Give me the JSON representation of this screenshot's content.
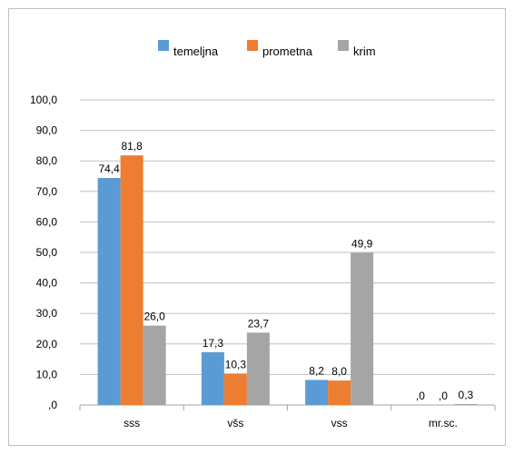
{
  "chart_data": {
    "type": "bar",
    "categories": [
      "sss",
      "všs",
      "vss",
      "mr.sc."
    ],
    "series": [
      {
        "name": "temeljna",
        "values": [
          74.4,
          17.3,
          8.2,
          0.0
        ],
        "labels": [
          "74,4",
          "17,3",
          "8,2",
          ",0"
        ],
        "color": "#5b9bd5"
      },
      {
        "name": "prometna",
        "values": [
          81.8,
          10.3,
          8.0,
          0.0
        ],
        "labels": [
          "81,8",
          "10,3",
          "8,0",
          ",0"
        ],
        "color": "#ed7d31"
      },
      {
        "name": "krim",
        "values": [
          26.0,
          23.7,
          49.9,
          0.3
        ],
        "labels": [
          "26,0",
          "23,7",
          "49,9",
          "0,3"
        ],
        "color": "#a5a5a5"
      }
    ],
    "yticks": [
      ",0",
      "10,0",
      "20,0",
      "30,0",
      "40,0",
      "50,0",
      "60,0",
      "70,0",
      "80,0",
      "90,0",
      "100,0"
    ],
    "ylim": [
      0,
      100
    ],
    "grid": true,
    "legend": "top"
  }
}
